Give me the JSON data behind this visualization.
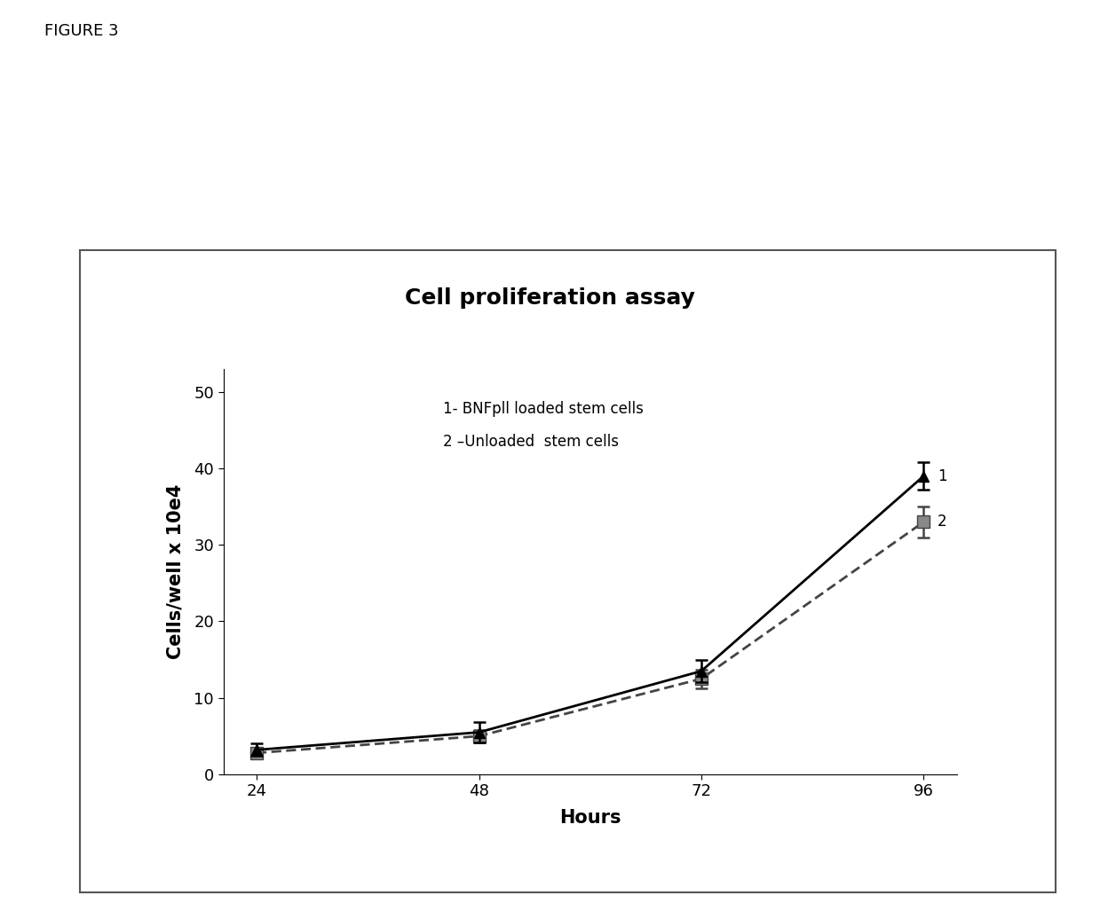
{
  "title": "Cell proliferation assay",
  "xlabel": "Hours",
  "ylabel": "Cells/well x 10e4",
  "x": [
    24,
    48,
    72,
    96
  ],
  "series1_y": [
    3.2,
    5.5,
    13.5,
    39.0
  ],
  "series1_yerr": [
    0.8,
    1.3,
    1.5,
    1.8
  ],
  "series2_y": [
    2.8,
    5.0,
    12.5,
    33.0
  ],
  "series2_yerr": [
    0.5,
    0.8,
    1.2,
    2.0
  ],
  "ylim": [
    0,
    53
  ],
  "yticks": [
    0,
    10,
    20,
    30,
    40,
    50
  ],
  "xticks": [
    24,
    48,
    72,
    96
  ],
  "legend1": "1- BNFpll loaded stem cells",
  "legend2": "2 –Unloaded  stem cells",
  "label1": "1",
  "label2": "2",
  "figure_label": "FIGURE 3",
  "background_color": "#ffffff",
  "series1_color": "#000000",
  "series2_color": "#444444",
  "title_fontsize": 18,
  "axis_label_fontsize": 15,
  "tick_fontsize": 13,
  "legend_fontsize": 12
}
